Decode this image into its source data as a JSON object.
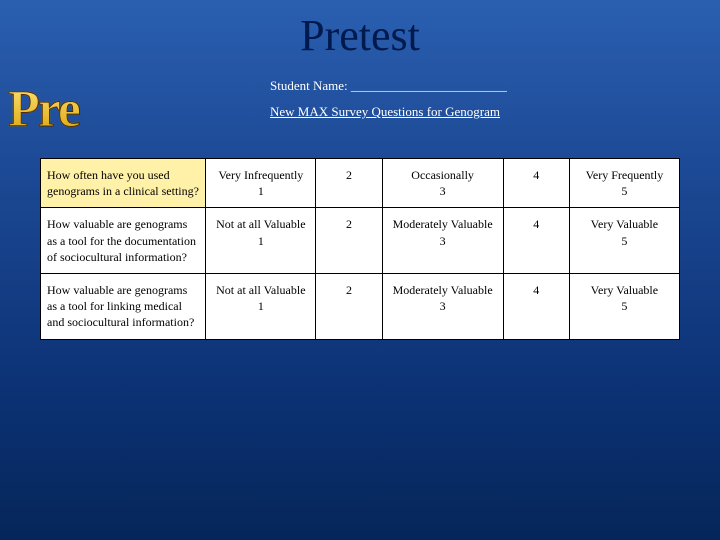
{
  "title": "Pretest",
  "side_label": "Pre",
  "student_name_label": "Student Name: ________________________",
  "survey_heading": "New MAX Survey Questions for Genogram",
  "rows": [
    {
      "question": "How often have you used genograms in a clinical setting?",
      "c1": "Very Infrequently\n1",
      "c2": "2",
      "c3": "Occasionally\n3",
      "c4": "4",
      "c5": "Very Frequently\n5"
    },
    {
      "question": "How valuable are genograms as a tool for the documentation of sociocultural information?",
      "c1": "Not at all Valuable\n1",
      "c2": "2",
      "c3": "Moderately Valuable\n3",
      "c4": "4",
      "c5": "Very Valuable\n5"
    },
    {
      "question": "How valuable are genograms as a tool for linking medical and sociocultural information?",
      "c1": "Not at all Valuable\n1",
      "c2": "2",
      "c3": "Moderately Valuable\n3",
      "c4": "4",
      "c5": "Very Valuable\n5"
    }
  ],
  "style": {
    "title_color": "#001a4d",
    "highlight_bg": "#fff2a8",
    "table_bg": "#ffffff",
    "border_color": "#000000",
    "bg_gradient": [
      "#2a5fb0",
      "#052659"
    ]
  }
}
